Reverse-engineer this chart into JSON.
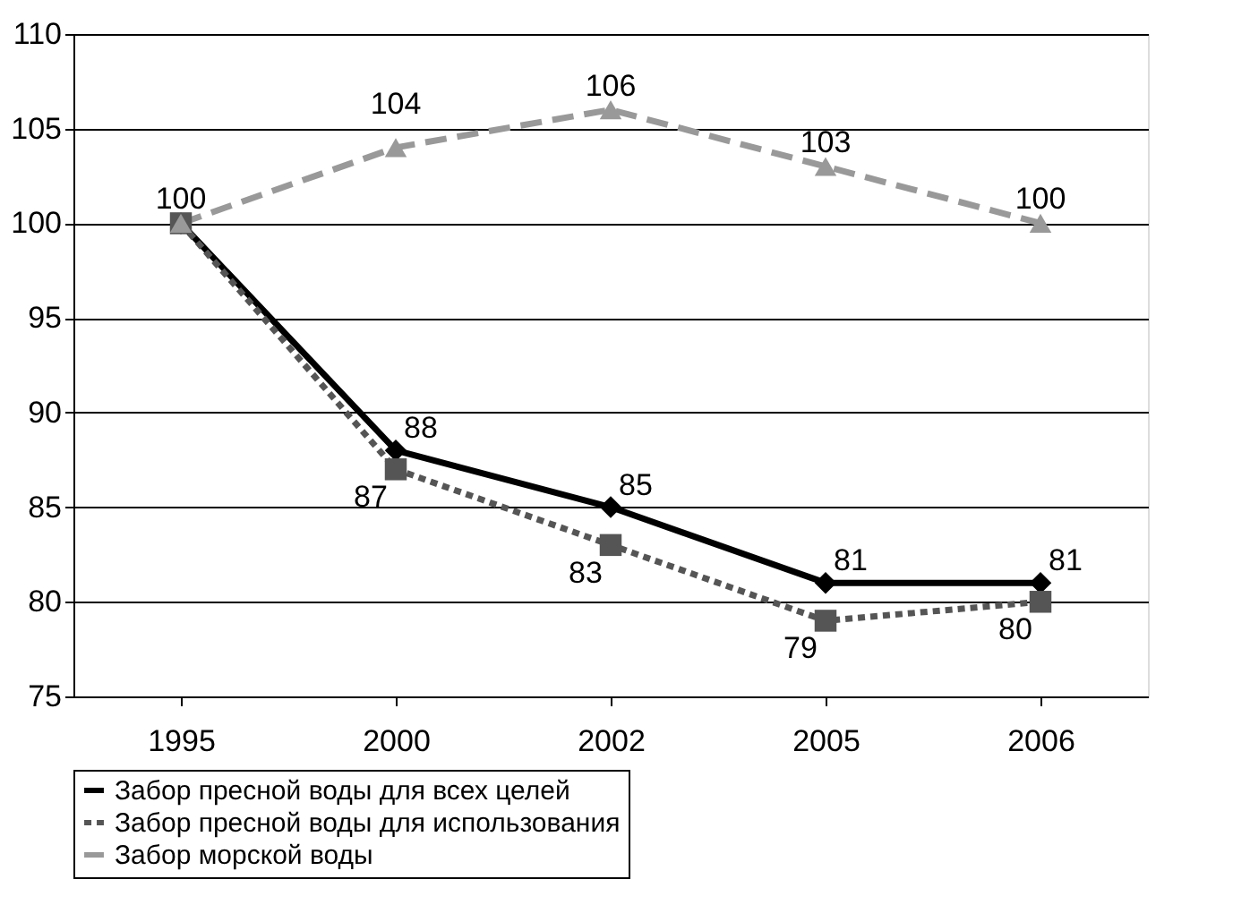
{
  "chart_data": {
    "type": "line",
    "categories": [
      "1995",
      "2000",
      "2002",
      "2005",
      "2006"
    ],
    "ylim": [
      75,
      110
    ],
    "yticks": [
      75,
      80,
      85,
      90,
      95,
      100,
      105,
      110
    ],
    "grid": "y",
    "legend": "bottom",
    "series": [
      {
        "name": "Забор пресной воды для всех целей",
        "color": "#000000",
        "marker": "diamond",
        "line_style": "solid",
        "values": [
          100,
          88,
          85,
          81,
          81
        ],
        "value_labels": [
          null,
          "88",
          "85",
          "81",
          "81"
        ]
      },
      {
        "name": "Забор пресной воды для использования",
        "color": "#555555",
        "marker": "square",
        "line_style": "dotted",
        "values": [
          100,
          87,
          83,
          79,
          80
        ],
        "value_labels": [
          null,
          "87",
          "83",
          "79",
          "80"
        ]
      },
      {
        "name": "Забор морской воды",
        "color": "#999999",
        "marker": "triangle",
        "line_style": "dashed",
        "values": [
          100,
          104,
          106,
          103,
          100
        ],
        "value_labels": [
          "100",
          "104",
          "106",
          "103",
          "100"
        ]
      }
    ]
  }
}
